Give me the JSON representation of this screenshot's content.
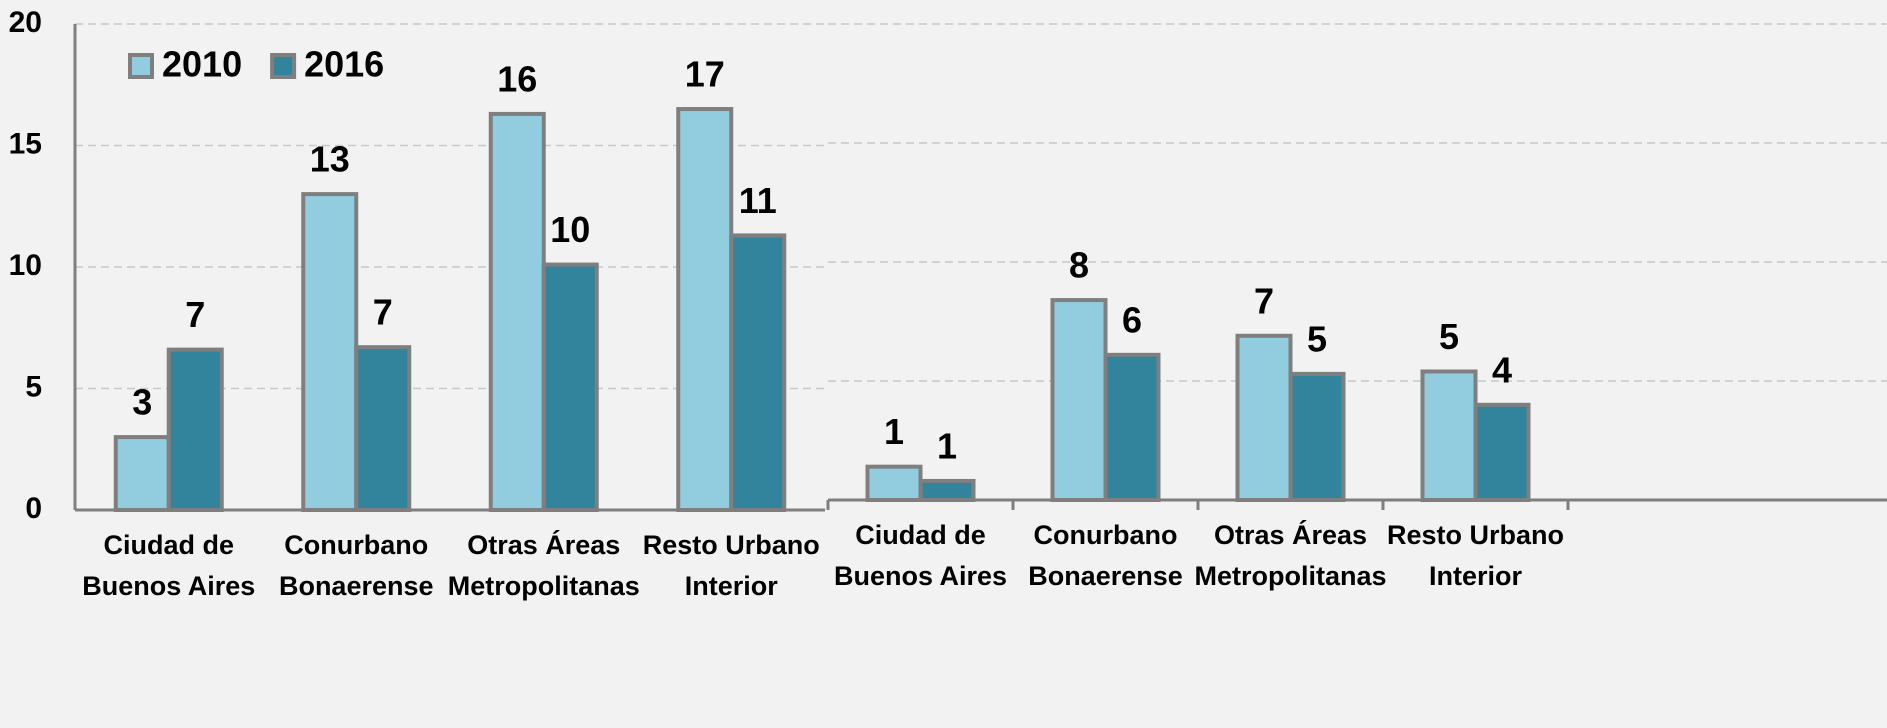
{
  "chart_data": [
    {
      "type": "bar",
      "categories": [
        [
          "Ciudad de",
          "Buenos Aires"
        ],
        [
          "Conurbano",
          "Bonaerense"
        ],
        [
          "Otras Áreas",
          "Metropolitanas"
        ],
        [
          "Resto Urbano",
          "Interior"
        ]
      ],
      "series": [
        {
          "name": "2010",
          "color": "#92cddf",
          "values": [
            3.0,
            13.0,
            16.3,
            16.5
          ],
          "value_labels": [
            "3",
            "13",
            "16",
            "17"
          ]
        },
        {
          "name": "2016",
          "color": "#31849b",
          "values": [
            6.6,
            6.7,
            10.1,
            11.3
          ],
          "value_labels": [
            "7",
            "7",
            "10",
            "11"
          ]
        }
      ],
      "ylim": [
        0,
        20
      ],
      "yticks": [
        0,
        5,
        10,
        15,
        20
      ],
      "show_tick_labels": true,
      "grid": true,
      "legend": "top-left"
    },
    {
      "type": "bar",
      "categories": [
        [
          "Ciudad de",
          "Buenos Aires"
        ],
        [
          "Conurbano",
          "Bonaerense"
        ],
        [
          "Otras Áreas",
          "Metropolitanas"
        ],
        [
          "Resto Urbano",
          "Interior"
        ]
      ],
      "series": [
        {
          "name": "2010",
          "color": "#92cddf",
          "values": [
            1.4,
            8.4,
            6.9,
            5.4
          ],
          "value_labels": [
            "1",
            "8",
            "7",
            "5"
          ]
        },
        {
          "name": "2016",
          "color": "#31849b",
          "values": [
            0.8,
            6.1,
            5.3,
            4.0
          ],
          "value_labels": [
            "1",
            "6",
            "5",
            "4"
          ]
        }
      ],
      "ylim": [
        0,
        20
      ],
      "yticks": [
        0,
        5,
        10,
        15,
        20
      ],
      "show_tick_labels": false,
      "grid": true,
      "legend": "none"
    }
  ]
}
